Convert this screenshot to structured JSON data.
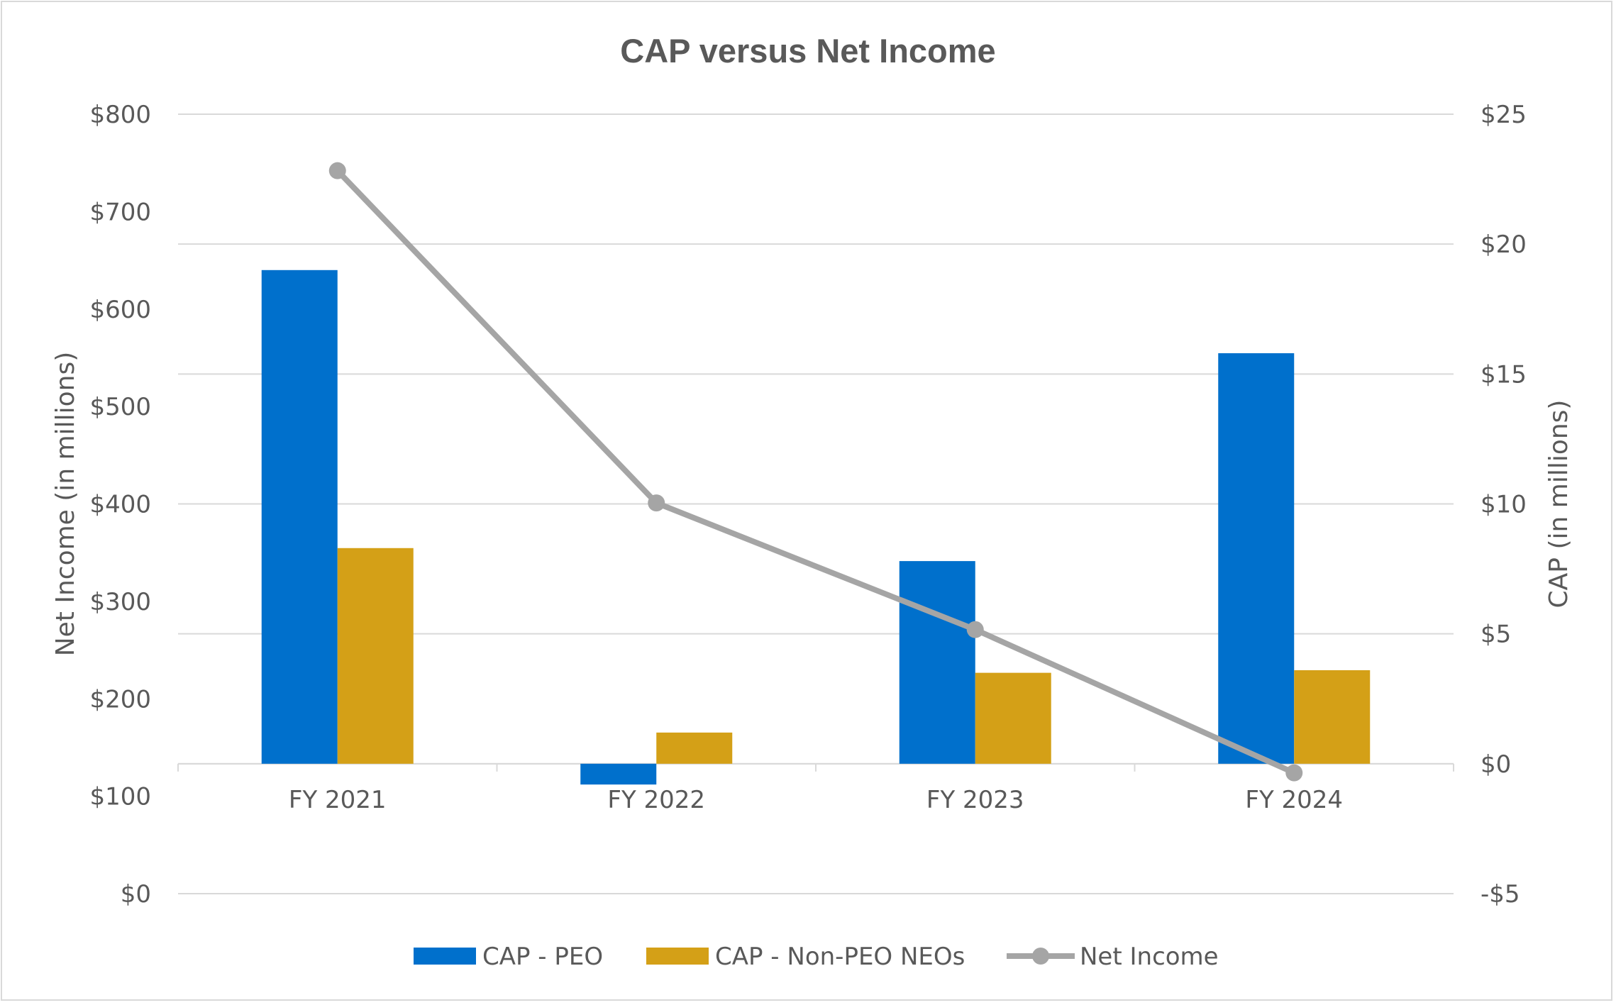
{
  "chart_data": {
    "type": "bar+line",
    "title": "CAP versus Net Income",
    "categories": [
      "FY 2021",
      "FY 2022",
      "FY 2023",
      "FY 2024"
    ],
    "y_left": {
      "label": "Net Income (in millions)",
      "ylim": [
        0,
        800
      ],
      "ticks": [
        0,
        100,
        200,
        300,
        400,
        500,
        600,
        700,
        800
      ],
      "tick_labels": [
        "$0",
        "$100",
        "$200",
        "$300",
        "$400",
        "$500",
        "$600",
        "$700",
        "$800"
      ]
    },
    "y_right": {
      "label": "CAP (in millions)",
      "ylim": [
        -5,
        25
      ],
      "ticks": [
        -5,
        0,
        5,
        10,
        15,
        20,
        25
      ],
      "tick_labels": [
        "-$5",
        "$0",
        "$5",
        "$10",
        "$15",
        "$20",
        "$25"
      ]
    },
    "series": [
      {
        "name": "CAP - PEO",
        "type": "bar",
        "axis": "right",
        "color": "#0070cc",
        "values": [
          19.0,
          -0.8,
          7.8,
          15.8
        ]
      },
      {
        "name": "CAP - Non-PEO NEOs",
        "type": "bar",
        "axis": "right",
        "color": "#d4a017",
        "values": [
          8.3,
          1.2,
          3.5,
          3.6
        ]
      },
      {
        "name": "Net Income",
        "type": "line",
        "axis": "left",
        "color": "#a5a5a5",
        "values": [
          742,
          401,
          271,
          124
        ]
      }
    ],
    "legend_position": "bottom"
  }
}
